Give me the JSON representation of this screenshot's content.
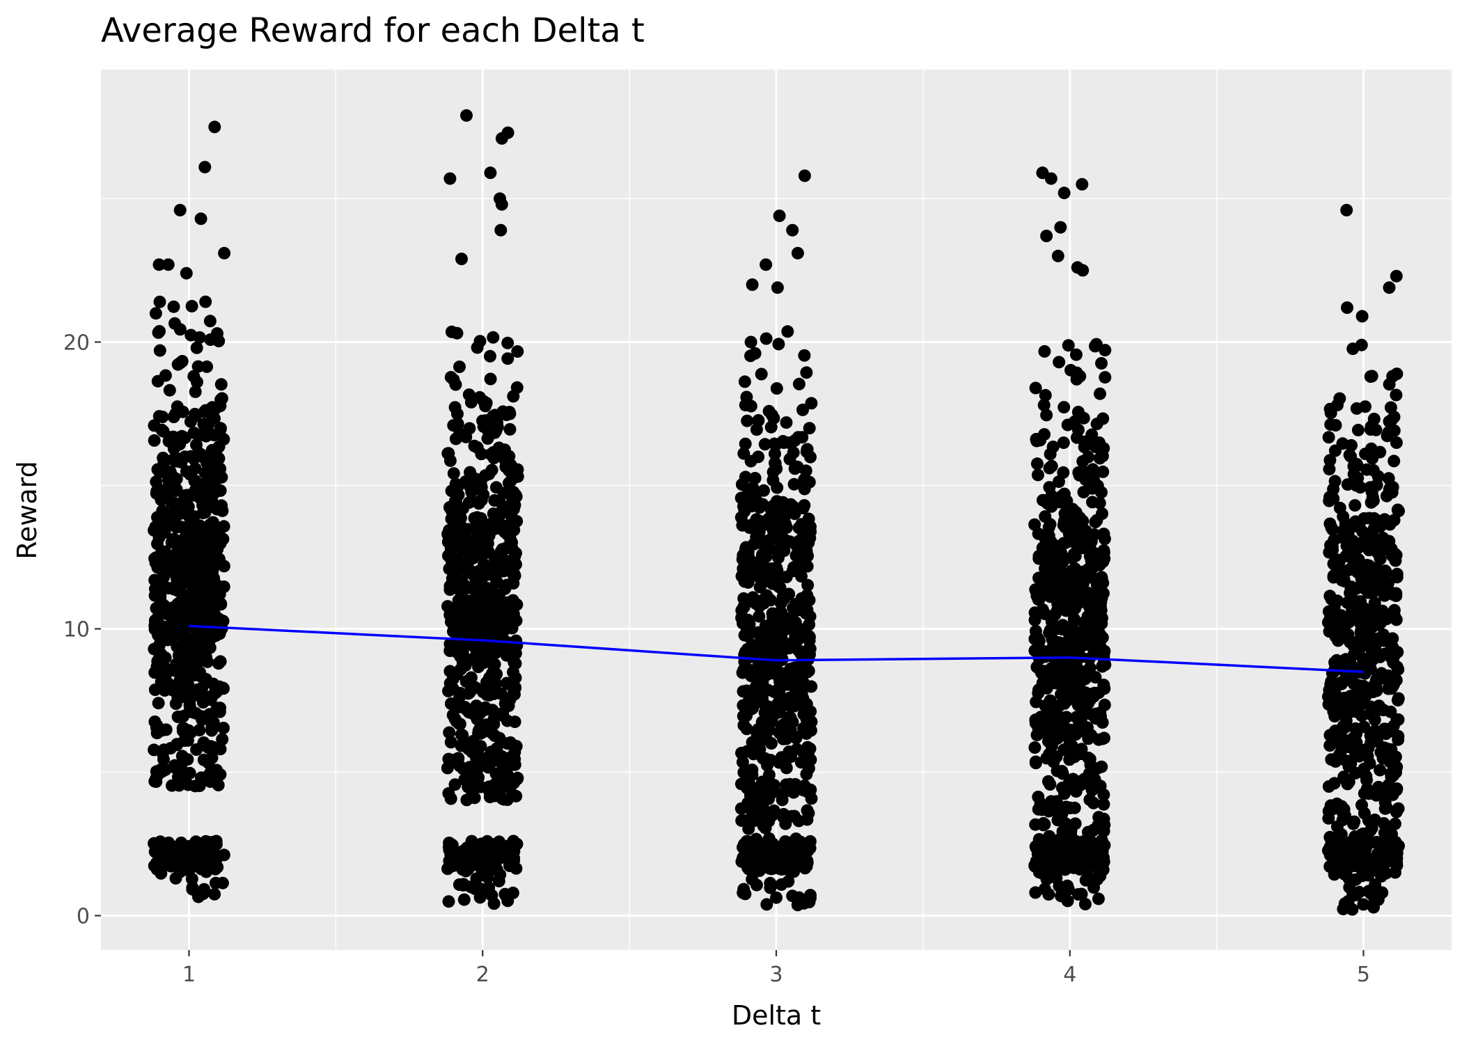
{
  "chart_data": {
    "type": "scatter",
    "title": "Average Reward for each Delta t",
    "xlabel": "Delta t",
    "ylabel": "Reward",
    "x_ticks": [
      "1",
      "2",
      "3",
      "4",
      "5"
    ],
    "y_ticks": [
      "0",
      "10",
      "20"
    ],
    "xlim": [
      0.7,
      5.3
    ],
    "ylim": [
      -1.2,
      29.5
    ],
    "grid": true,
    "background": "#ebebeb",
    "jitter_width": 0.12,
    "series": [
      {
        "name": "",
        "kind": "jitter-points",
        "color": "#000000",
        "groups": [
          {
            "x": 1,
            "n": 720,
            "bulk_range": [
              4.5,
              21.5
            ],
            "bulk_center": 11.5,
            "cluster_range": [
              0.6,
              2.6
            ],
            "cluster_n": 110,
            "outliers": [
              27.5,
              26.1,
              24.6,
              24.3,
              23.1,
              22.7,
              22.7,
              22.4
            ]
          },
          {
            "x": 2,
            "n": 720,
            "bulk_range": [
              4.0,
              21.0
            ],
            "bulk_center": 10.5,
            "cluster_range": [
              0.4,
              2.6
            ],
            "cluster_n": 120,
            "outliers": [
              27.9,
              27.3,
              27.1,
              25.9,
              25.7,
              25.0,
              24.8,
              23.9,
              22.9
            ]
          },
          {
            "x": 3,
            "n": 760,
            "bulk_range": [
              3.0,
              20.5
            ],
            "bulk_center": 9.5,
            "cluster_range": [
              0.3,
              2.7
            ],
            "cluster_n": 170,
            "outliers": [
              25.8,
              24.4,
              23.9,
              23.1,
              22.7,
              22.0,
              21.9
            ]
          },
          {
            "x": 4,
            "n": 740,
            "bulk_range": [
              2.5,
              20.0
            ],
            "bulk_center": 10.0,
            "cluster_range": [
              0.3,
              2.7
            ],
            "cluster_n": 160,
            "outliers": [
              25.9,
              25.7,
              25.5,
              25.2,
              24.0,
              23.7,
              23.0,
              22.6,
              22.5
            ]
          },
          {
            "x": 5,
            "n": 660,
            "bulk_range": [
              2.5,
              20.0
            ],
            "bulk_center": 10.0,
            "cluster_range": [
              0.2,
              2.7
            ],
            "cluster_n": 150,
            "outliers": [
              24.6,
              22.3,
              21.9,
              21.2,
              20.9
            ]
          }
        ]
      },
      {
        "name": "",
        "kind": "line",
        "color": "#0000ff",
        "x": [
          1,
          2,
          3,
          4,
          5
        ],
        "y": [
          10.1,
          9.6,
          8.9,
          9.0,
          8.5
        ]
      }
    ]
  }
}
